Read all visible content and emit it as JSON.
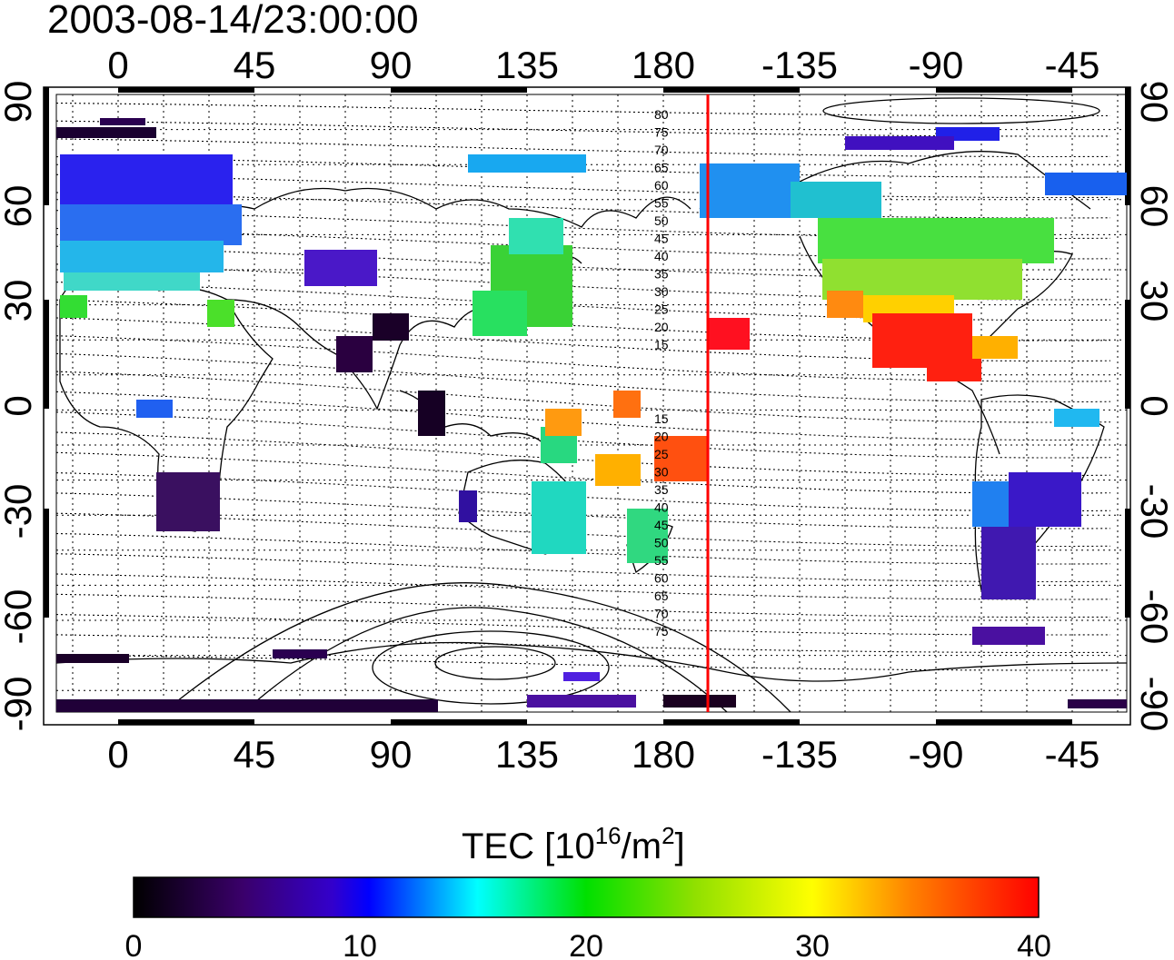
{
  "timestamp": "2003-08-14/23:00:00",
  "map": {
    "lon_ticks": [
      "0",
      "45",
      "90",
      "135",
      "180",
      "-135",
      "-90",
      "-45"
    ],
    "lat_ticks_left": [
      "90",
      "60",
      "30",
      "0",
      "-30",
      "-60",
      "-90"
    ],
    "lat_ticks_right": [
      "90",
      "60",
      "30",
      "0",
      "-30",
      "-60",
      "-90"
    ],
    "contour_labels_north": [
      "80",
      "75",
      "70",
      "65",
      "60",
      "55",
      "50",
      "45",
      "40",
      "35",
      "30",
      "25",
      "20",
      "15"
    ],
    "contour_labels_south": [
      "15",
      "20",
      "25",
      "30",
      "35",
      "40",
      "45",
      "50",
      "55",
      "60",
      "65",
      "70",
      "75"
    ],
    "terminator_color": "#ff0000"
  },
  "colorbar": {
    "title_main": "TEC  [10",
    "title_exp": "16",
    "title_mid": "/m",
    "title_exp2": "2",
    "title_end": "]",
    "ticks": [
      "0",
      "10",
      "20",
      "30",
      "40"
    ],
    "stops": [
      "#000000",
      "#5a0a9a",
      "#0000ff",
      "#00ffff",
      "#00e000",
      "#ffff00",
      "#ff8000",
      "#ff0000"
    ]
  }
}
